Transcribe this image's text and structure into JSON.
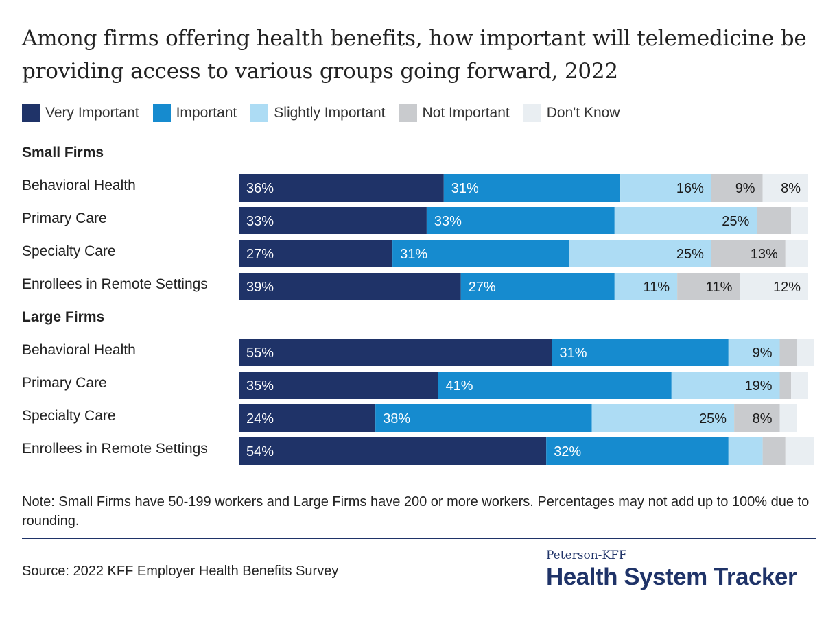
{
  "title": "Among firms offering health benefits, how important will telemedicine be providing access to various groups going forward, 2022",
  "legend": [
    {
      "label": "Very Important",
      "color": "#1f3368"
    },
    {
      "label": "Important",
      "color": "#168bcf"
    },
    {
      "label": "Slightly Important",
      "color": "#addcf4"
    },
    {
      "label": "Not Important",
      "color": "#c9cbce"
    },
    {
      "label": "Don't Know",
      "color": "#e9eef2"
    }
  ],
  "chart_data": {
    "type": "bar",
    "orientation": "horizontal",
    "stacked": true,
    "xlim": [
      0,
      100
    ],
    "unit": "%",
    "series": [
      {
        "name": "Very Important",
        "color": "#1f3368"
      },
      {
        "name": "Important",
        "color": "#168bcf"
      },
      {
        "name": "Slightly Important",
        "color": "#addcf4"
      },
      {
        "name": "Not Important",
        "color": "#c9cbce"
      },
      {
        "name": "Don't Know",
        "color": "#e9eef2"
      }
    ],
    "groups": [
      {
        "name": "Small Firms",
        "rows": [
          {
            "label": "Behavioral Health",
            "values": [
              36,
              31,
              16,
              9,
              8
            ]
          },
          {
            "label": "Primary Care",
            "values": [
              33,
              33,
              25,
              6,
              3
            ]
          },
          {
            "label": "Specialty Care",
            "values": [
              27,
              31,
              25,
              13,
              4
            ]
          },
          {
            "label": "Enrollees in Remote Settings",
            "values": [
              39,
              27,
              11,
              11,
              12
            ]
          }
        ]
      },
      {
        "name": "Large Firms",
        "rows": [
          {
            "label": "Behavioral Health",
            "values": [
              55,
              31,
              9,
              3,
              3
            ]
          },
          {
            "label": "Primary Care",
            "values": [
              35,
              41,
              19,
              2,
              3
            ]
          },
          {
            "label": "Specialty Care",
            "values": [
              24,
              38,
              25,
              8,
              3
            ]
          },
          {
            "label": "Enrollees in Remote Settings",
            "values": [
              54,
              32,
              6,
              4,
              5
            ]
          }
        ]
      }
    ],
    "label_threshold": 7
  },
  "note": "Note: Small Firms have 50-199 workers and Large Firms have 200 or more workers. Percentages may not add up to 100% due to rounding.",
  "source": "Source: 2022 KFF Employer Health Benefits Survey",
  "brand": {
    "small": "Peterson-KFF",
    "big": "Health System Tracker"
  }
}
